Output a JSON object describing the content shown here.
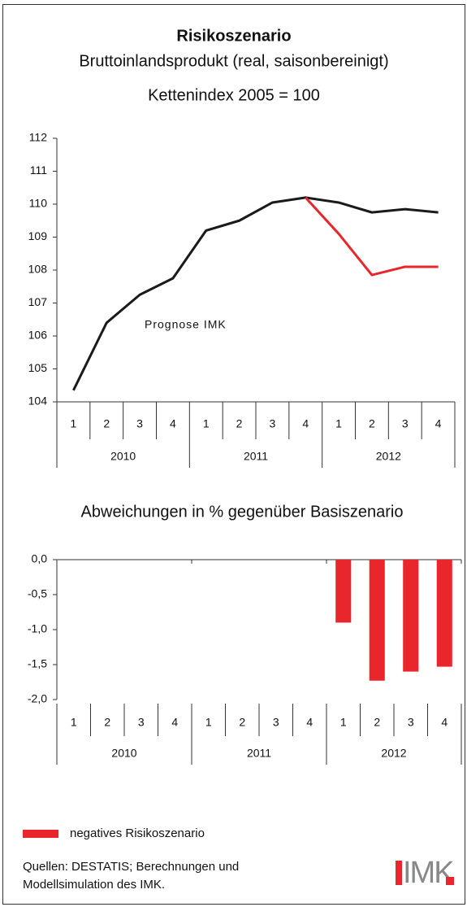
{
  "chart_data": [
    {
      "type": "line",
      "title": "Risikoszenario",
      "subtitle": "Bruttoinlandsprodukt (real, saisonbereinigt)",
      "ylabel": "Kettenindex 2005 = 100",
      "categories": [
        "1",
        "2",
        "3",
        "4",
        "1",
        "2",
        "3",
        "4",
        "1",
        "2",
        "3",
        "4"
      ],
      "years": [
        "2010",
        "2011",
        "2012"
      ],
      "series": [
        {
          "color": "#1a1a1a",
          "values": [
            104.35,
            106.4,
            107.25,
            107.75,
            109.2,
            109.5,
            110.05,
            110.2,
            110.05,
            109.75,
            109.85,
            109.75
          ]
        },
        {
          "color": "#e8262b",
          "values": [
            null,
            null,
            null,
            null,
            null,
            null,
            null,
            110.2,
            109.1,
            107.85,
            108.1,
            108.1
          ]
        }
      ],
      "annotation": "Prognose IMK",
      "ylim": [
        104,
        112
      ],
      "yticks": [
        104,
        105,
        106,
        107,
        108,
        109,
        110,
        111,
        112
      ]
    },
    {
      "type": "bar",
      "title": "Abweichungen in % gegenüber Basiszenario",
      "categories": [
        "1",
        "2",
        "3",
        "4",
        "1",
        "2",
        "3",
        "4",
        "1",
        "2",
        "3",
        "4"
      ],
      "years": [
        "2010",
        "2011",
        "2012"
      ],
      "series": [
        {
          "name": "negatives Risikoszenario",
          "color": "#e8262b",
          "values": [
            null,
            null,
            null,
            null,
            null,
            null,
            null,
            null,
            -0.9,
            -1.73,
            -1.6,
            -1.53
          ]
        }
      ],
      "ylim": [
        -2,
        0
      ],
      "yticks": [
        {
          "value": 0,
          "label": "0,0"
        },
        {
          "value": -0.5,
          "label": "-0,5"
        },
        {
          "value": -1,
          "label": "-1,0"
        },
        {
          "value": -1.5,
          "label": "-1,5"
        },
        {
          "value": -2,
          "label": "-2,0"
        }
      ],
      "legend": "bottom-left"
    }
  ],
  "source": [
    "Quellen: DESTATIS; Berechnungen und",
    "Modellsimulation des IMK."
  ],
  "logo": "IMK"
}
